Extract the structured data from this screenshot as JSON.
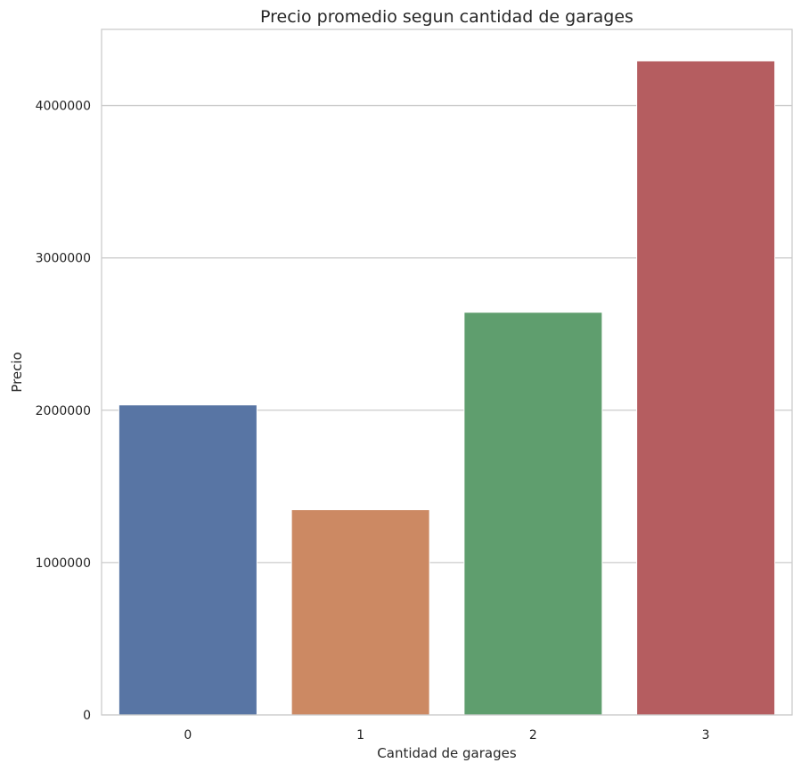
{
  "chart_data": {
    "type": "bar",
    "title": "Precio promedio segun cantidad de garages",
    "xlabel": "Cantidad de garages",
    "ylabel": "Precio",
    "categories": [
      "0",
      "1",
      "2",
      "3"
    ],
    "values": [
      2035000,
      1347000,
      2643000,
      4293000
    ],
    "colors": [
      "#5875a4",
      "#cc8963",
      "#5f9e6e",
      "#b55d60"
    ],
    "ylim": [
      0,
      4500000
    ],
    "yticks": [
      0,
      1000000,
      2000000,
      3000000,
      4000000
    ],
    "ytick_labels": [
      "0",
      "1000000",
      "2000000",
      "3000000",
      "4000000"
    ],
    "grid": true,
    "grid_axis": "y",
    "legend": "none"
  },
  "style": {
    "grid_color": "#cccccc",
    "axes_edge_color": "#cccccc",
    "text_color": "#262626",
    "background": "#ffffff"
  }
}
